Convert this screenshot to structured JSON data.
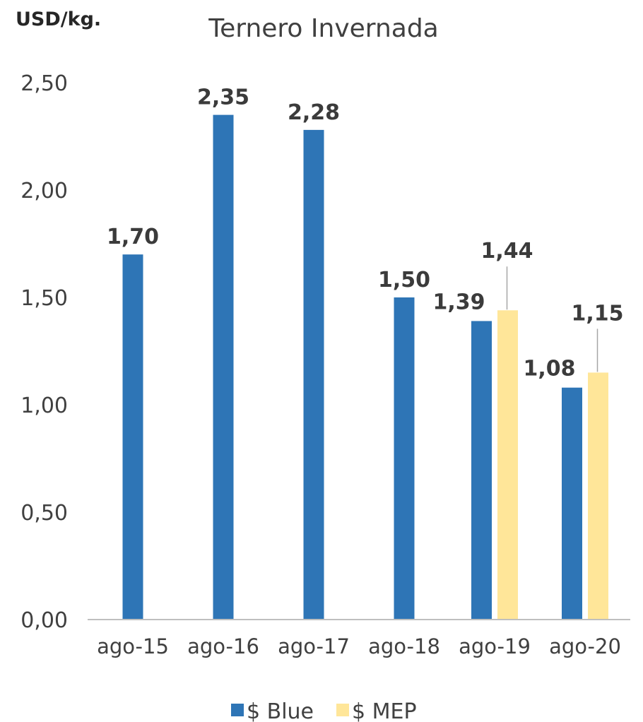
{
  "chart_data": {
    "type": "bar",
    "title": "Ternero Invernada",
    "unit_label": "USD/kg.",
    "ylim": [
      0,
      2.5
    ],
    "y_ticks": [
      "0,00",
      "0,50",
      "1,00",
      "1,50",
      "2,00",
      "2,50"
    ],
    "y_tick_values": [
      0,
      0.5,
      1,
      1.5,
      2,
      2.5
    ],
    "categories": [
      "ago-15",
      "ago-16",
      "ago-17",
      "ago-18",
      "ago-19",
      "ago-20"
    ],
    "series": [
      {
        "name": "$ Blue",
        "color": "#2E75B6",
        "values": [
          1.7,
          2.35,
          2.28,
          1.5,
          1.39,
          1.08
        ],
        "labels": [
          "1,70",
          "2,35",
          "2,28",
          "1,50",
          "1,39",
          "1,08"
        ]
      },
      {
        "name": "$ MEP",
        "color": "#FFE699",
        "values": [
          null,
          null,
          null,
          null,
          1.44,
          1.15
        ],
        "labels": [
          null,
          null,
          null,
          null,
          "1,44",
          "1,15"
        ]
      }
    ],
    "grid": false,
    "legend": "bottom"
  }
}
